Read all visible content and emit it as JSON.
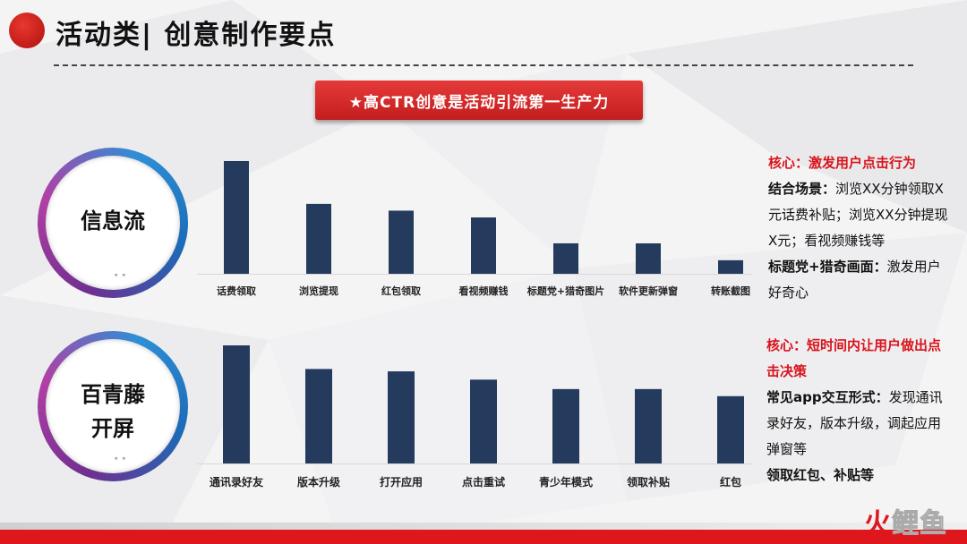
{
  "header": {
    "title": "活动类| 创意制作要点"
  },
  "banner": {
    "text": "★高CTR创意是活动引流第一生产力"
  },
  "sections": [
    {
      "ring_label_lines": [
        "信息流"
      ],
      "ring_dots": "。。"
    },
    {
      "ring_label_lines": [
        "百青藤",
        "开屏"
      ],
      "ring_dots": "。。"
    }
  ],
  "chart_data": [
    {
      "type": "bar",
      "categories": [
        "话费领取",
        "浏览提现",
        "红包领取",
        "看视频赚钱",
        "标题党+猎奇图片",
        "软件更新弹窗",
        "转账截图"
      ],
      "values": [
        100,
        62,
        56,
        50,
        27,
        27,
        12
      ],
      "title": "",
      "xlabel": "",
      "ylabel": "",
      "ylim": [
        0,
        100
      ],
      "color": "#243b5e"
    },
    {
      "type": "bar",
      "categories": [
        "通讯录好友",
        "版本升级",
        "打开应用",
        "点击重试",
        "青少年模式",
        "领取补贴",
        "红包"
      ],
      "values": [
        100,
        80,
        78,
        71,
        63,
        63,
        57
      ],
      "title": "",
      "xlabel": "",
      "ylabel": "",
      "ylim": [
        0,
        100
      ],
      "color": "#243b5e"
    }
  ],
  "notes": [
    {
      "core": "核心：激发用户点击行为",
      "line1_label": "结合场景：",
      "line1_text": "浏览XX分钟领取X元话费补贴；浏览XX分钟提现X元；看视频赚钱等",
      "line2_label": "标题党+猎奇画面：",
      "line2_text": "激发用户好奇心"
    },
    {
      "core": "核心：短时间内让用户做出点击决策",
      "line1_label": "常见app交互形式：",
      "line1_text": "发现通讯录好友，版本升级，调起应用弹窗等",
      "line2_label": "领取红包、补贴等",
      "line2_text": ""
    }
  ],
  "logo": {
    "c1": "火",
    "c2": "鲤",
    "c3": "鱼"
  },
  "colors": {
    "accent": "#e0161d",
    "bar": "#243b5e"
  }
}
